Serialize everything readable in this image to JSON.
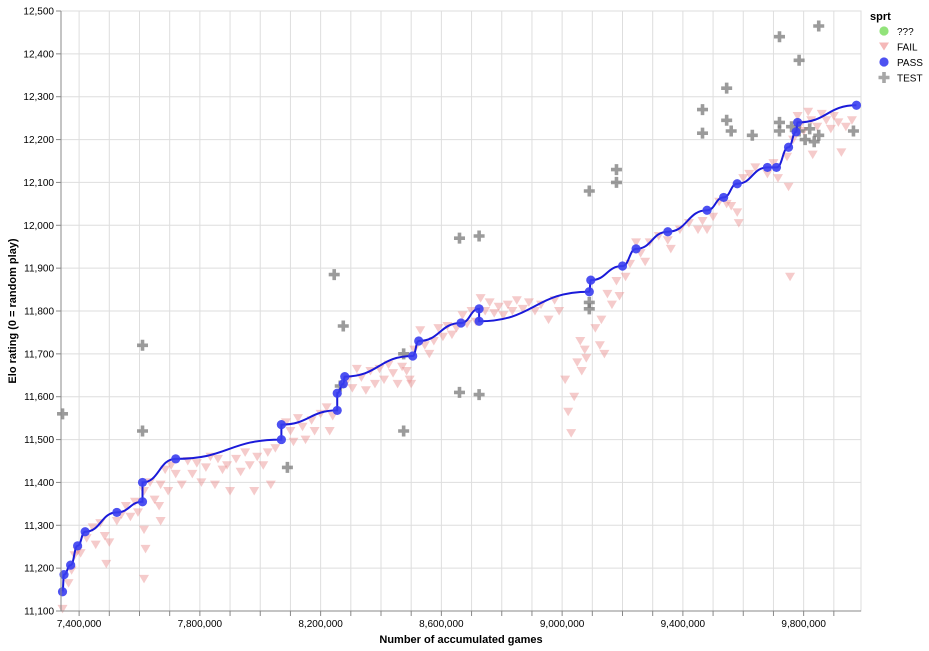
{
  "chart_data": {
    "type": "scatter",
    "xlabel": "Number of accumulated games",
    "ylabel": "Elo rating (0 = random play)",
    "xlim": [
      7340000,
      9990000
    ],
    "ylim": [
      11100,
      12500
    ],
    "x_ticks": [
      7400000,
      7800000,
      8200000,
      8600000,
      9000000,
      9400000,
      9800000
    ],
    "x_tick_labels": [
      "7,400,000",
      "7,800,000",
      "8,200,000",
      "8,600,000",
      "9,000,000",
      "9,400,000",
      "9,800,000"
    ],
    "y_ticks": [
      11100,
      11200,
      11300,
      11400,
      11500,
      11600,
      11700,
      11800,
      11900,
      12000,
      12100,
      12200,
      12300,
      12400,
      12500
    ],
    "y_tick_labels": [
      "11,100",
      "11,200",
      "11,300",
      "11,400",
      "11,500",
      "11,600",
      "11,700",
      "11,800",
      "11,900",
      "12,000",
      "12,100",
      "12,200",
      "12,300",
      "12,400",
      "12,500"
    ],
    "grid": true,
    "legend": {
      "title": "sprt",
      "position": "top-right",
      "entries": [
        {
          "label": "???",
          "symbol": "circle",
          "color": "#86e06b"
        },
        {
          "label": "FAIL",
          "symbol": "triangle-down",
          "color": "#f3a6a6"
        },
        {
          "label": "PASS",
          "symbol": "circle",
          "color": "#3a3ef0"
        },
        {
          "label": "TEST",
          "symbol": "cross",
          "color": "#8a8a8a"
        }
      ]
    },
    "colors": {
      "pass": "#3a3ef0",
      "pass_line": "#1a1ad9",
      "fail": "#e98c8c",
      "test": "#7a7a7a",
      "unknown": "#86e06b"
    },
    "series": [
      {
        "name": "PASS",
        "marker": "circle",
        "connected": true,
        "points": [
          [
            7345000,
            11145
          ],
          [
            7350000,
            11185
          ],
          [
            7372000,
            11207
          ],
          [
            7395000,
            11252
          ],
          [
            7420000,
            11285
          ],
          [
            7525000,
            11330
          ],
          [
            7610000,
            11355
          ],
          [
            7610000,
            11400
          ],
          [
            7720000,
            11455
          ],
          [
            8070000,
            11500
          ],
          [
            8070000,
            11535
          ],
          [
            8255000,
            11568
          ],
          [
            8255000,
            11608
          ],
          [
            8275000,
            11630
          ],
          [
            8280000,
            11647
          ],
          [
            8505000,
            11695
          ],
          [
            8525000,
            11730
          ],
          [
            8665000,
            11772
          ],
          [
            8725000,
            11805
          ],
          [
            8725000,
            11776
          ],
          [
            9090000,
            11845
          ],
          [
            9095000,
            11872
          ],
          [
            9200000,
            11905
          ],
          [
            9245000,
            11945
          ],
          [
            9350000,
            11985
          ],
          [
            9480000,
            12035
          ],
          [
            9535000,
            12065
          ],
          [
            9580000,
            12097
          ],
          [
            9680000,
            12135
          ],
          [
            9710000,
            12135
          ],
          [
            9750000,
            12182
          ],
          [
            9775000,
            12218
          ],
          [
            9780000,
            12240
          ],
          [
            9975000,
            12280
          ]
        ]
      },
      {
        "name": "FAIL",
        "marker": "triangle-down",
        "points": [
          [
            7345000,
            11105
          ],
          [
            7365000,
            11165
          ],
          [
            7375000,
            11195
          ],
          [
            7385000,
            11230
          ],
          [
            7395000,
            11240
          ],
          [
            7405000,
            11235
          ],
          [
            7425000,
            11270
          ],
          [
            7445000,
            11295
          ],
          [
            7455000,
            11255
          ],
          [
            7470000,
            11305
          ],
          [
            7485000,
            11275
          ],
          [
            7490000,
            11210
          ],
          [
            7500000,
            11260
          ],
          [
            7525000,
            11310
          ],
          [
            7540000,
            11325
          ],
          [
            7555000,
            11345
          ],
          [
            7570000,
            11320
          ],
          [
            7585000,
            11355
          ],
          [
            7595000,
            11330
          ],
          [
            7615000,
            11380
          ],
          [
            7615000,
            11290
          ],
          [
            7620000,
            11245
          ],
          [
            7615000,
            11175
          ],
          [
            7635000,
            11400
          ],
          [
            7650000,
            11360
          ],
          [
            7665000,
            11345
          ],
          [
            7670000,
            11395
          ],
          [
            7670000,
            11310
          ],
          [
            7685000,
            11430
          ],
          [
            7695000,
            11380
          ],
          [
            7705000,
            11440
          ],
          [
            7720000,
            11420
          ],
          [
            7740000,
            11395
          ],
          [
            7760000,
            11450
          ],
          [
            7775000,
            11420
          ],
          [
            7790000,
            11445
          ],
          [
            7805000,
            11400
          ],
          [
            7820000,
            11435
          ],
          [
            7835000,
            11460
          ],
          [
            7850000,
            11395
          ],
          [
            7860000,
            11455
          ],
          [
            7875000,
            11430
          ],
          [
            7890000,
            11440
          ],
          [
            7900000,
            11380
          ],
          [
            7920000,
            11455
          ],
          [
            7935000,
            11425
          ],
          [
            7950000,
            11470
          ],
          [
            7965000,
            11440
          ],
          [
            7980000,
            11380
          ],
          [
            7990000,
            11460
          ],
          [
            8010000,
            11440
          ],
          [
            8025000,
            11470
          ],
          [
            8035000,
            11395
          ],
          [
            8050000,
            11480
          ],
          [
            8085000,
            11540
          ],
          [
            8100000,
            11520
          ],
          [
            8110000,
            11495
          ],
          [
            8125000,
            11550
          ],
          [
            8140000,
            11530
          ],
          [
            8150000,
            11500
          ],
          [
            8170000,
            11545
          ],
          [
            8180000,
            11520
          ],
          [
            8200000,
            11560
          ],
          [
            8220000,
            11575
          ],
          [
            8230000,
            11520
          ],
          [
            8240000,
            11555
          ],
          [
            8290000,
            11640
          ],
          [
            8305000,
            11620
          ],
          [
            8320000,
            11665
          ],
          [
            8335000,
            11645
          ],
          [
            8350000,
            11615
          ],
          [
            8365000,
            11660
          ],
          [
            8380000,
            11630
          ],
          [
            8395000,
            11665
          ],
          [
            8410000,
            11640
          ],
          [
            8425000,
            11675
          ],
          [
            8440000,
            11655
          ],
          [
            8455000,
            11630
          ],
          [
            8470000,
            11670
          ],
          [
            8485000,
            11660
          ],
          [
            8495000,
            11640
          ],
          [
            8500000,
            11630
          ],
          [
            8510000,
            11710
          ],
          [
            8530000,
            11755
          ],
          [
            8545000,
            11720
          ],
          [
            8560000,
            11700
          ],
          [
            8575000,
            11730
          ],
          [
            8590000,
            11760
          ],
          [
            8605000,
            11740
          ],
          [
            8620000,
            11765
          ],
          [
            8635000,
            11745
          ],
          [
            8650000,
            11760
          ],
          [
            8670000,
            11790
          ],
          [
            8685000,
            11770
          ],
          [
            8700000,
            11800
          ],
          [
            8715000,
            11775
          ],
          [
            8730000,
            11830
          ],
          [
            8745000,
            11800
          ],
          [
            8760000,
            11820
          ],
          [
            8775000,
            11795
          ],
          [
            8790000,
            11810
          ],
          [
            8805000,
            11790
          ],
          [
            8820000,
            11815
          ],
          [
            8835000,
            11800
          ],
          [
            8850000,
            11825
          ],
          [
            8870000,
            11805
          ],
          [
            8890000,
            11820
          ],
          [
            8910000,
            11800
          ],
          [
            8930000,
            11815
          ],
          [
            8955000,
            11780
          ],
          [
            8975000,
            11825
          ],
          [
            8990000,
            11800
          ],
          [
            9010000,
            11640
          ],
          [
            9020000,
            11565
          ],
          [
            9030000,
            11515
          ],
          [
            9040000,
            11600
          ],
          [
            9050000,
            11680
          ],
          [
            9060000,
            11730
          ],
          [
            9065000,
            11660
          ],
          [
            9075000,
            11710
          ],
          [
            9080000,
            11690
          ],
          [
            9110000,
            11760
          ],
          [
            9125000,
            11720
          ],
          [
            9130000,
            11780
          ],
          [
            9140000,
            11700
          ],
          [
            9150000,
            11840
          ],
          [
            9165000,
            11815
          ],
          [
            9180000,
            11870
          ],
          [
            9190000,
            11835
          ],
          [
            9210000,
            11880
          ],
          [
            9225000,
            11910
          ],
          [
            9245000,
            11960
          ],
          [
            9260000,
            11935
          ],
          [
            9275000,
            11915
          ],
          [
            9290000,
            11960
          ],
          [
            9320000,
            11975
          ],
          [
            9350000,
            11965
          ],
          [
            9360000,
            11945
          ],
          [
            9390000,
            11990
          ],
          [
            9420000,
            12005
          ],
          [
            9450000,
            11990
          ],
          [
            9465000,
            12010
          ],
          [
            9480000,
            11990
          ],
          [
            9500000,
            12020
          ],
          [
            9520000,
            12055
          ],
          [
            9545000,
            12050
          ],
          [
            9560000,
            12045
          ],
          [
            9580000,
            12030
          ],
          [
            9585000,
            12005
          ],
          [
            9600000,
            12110
          ],
          [
            9620000,
            12120
          ],
          [
            9640000,
            12135
          ],
          [
            9680000,
            12120
          ],
          [
            9700000,
            12145
          ],
          [
            9715000,
            12110
          ],
          [
            9745000,
            12160
          ],
          [
            9750000,
            12090
          ],
          [
            9755000,
            11880
          ],
          [
            9765000,
            12200
          ],
          [
            9780000,
            12255
          ],
          [
            9790000,
            12235
          ],
          [
            9800000,
            12220
          ],
          [
            9815000,
            12265
          ],
          [
            9825000,
            12245
          ],
          [
            9830000,
            12165
          ],
          [
            9845000,
            12230
          ],
          [
            9860000,
            12260
          ],
          [
            9875000,
            12245
          ],
          [
            9890000,
            12225
          ],
          [
            9900000,
            12255
          ],
          [
            9915000,
            12240
          ],
          [
            9925000,
            12170
          ],
          [
            9940000,
            12230
          ],
          [
            9960000,
            12245
          ]
        ]
      },
      {
        "name": "TEST",
        "marker": "cross",
        "points": [
          [
            7345000,
            11560
          ],
          [
            7610000,
            11720
          ],
          [
            7610000,
            11520
          ],
          [
            8090000,
            11435
          ],
          [
            8245000,
            11885
          ],
          [
            8265000,
            11625
          ],
          [
            8275000,
            11765
          ],
          [
            8475000,
            11700
          ],
          [
            8475000,
            11520
          ],
          [
            8660000,
            11970
          ],
          [
            8660000,
            11610
          ],
          [
            8725000,
            11975
          ],
          [
            8725000,
            11605
          ],
          [
            9090000,
            12080
          ],
          [
            9090000,
            11820
          ],
          [
            9090000,
            11805
          ],
          [
            9180000,
            12130
          ],
          [
            9180000,
            12100
          ],
          [
            9465000,
            12270
          ],
          [
            9465000,
            12215
          ],
          [
            9545000,
            12320
          ],
          [
            9545000,
            12245
          ],
          [
            9560000,
            12220
          ],
          [
            9630000,
            12210
          ],
          [
            9720000,
            12440
          ],
          [
            9720000,
            12240
          ],
          [
            9720000,
            12220
          ],
          [
            9760000,
            12230
          ],
          [
            9785000,
            12385
          ],
          [
            9785000,
            12220
          ],
          [
            9805000,
            12200
          ],
          [
            9820000,
            12225
          ],
          [
            9835000,
            12195
          ],
          [
            9850000,
            12465
          ],
          [
            9850000,
            12210
          ],
          [
            9965000,
            12220
          ]
        ]
      }
    ]
  }
}
